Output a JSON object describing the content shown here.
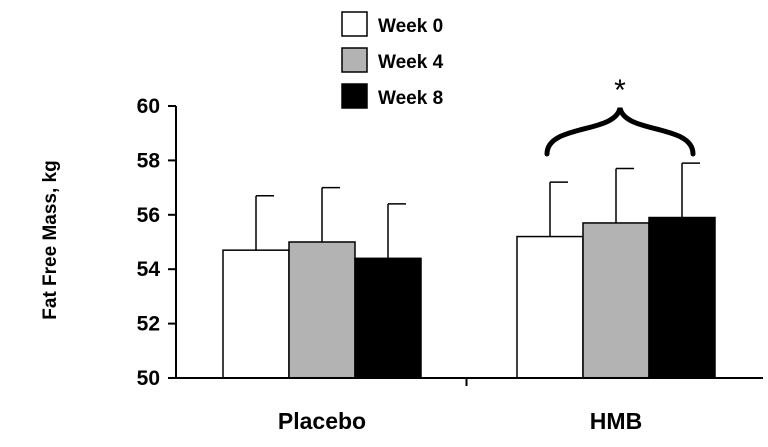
{
  "chart_data": {
    "type": "bar",
    "categories": [
      "Placebo",
      "HMB"
    ],
    "series": [
      {
        "name": "Week 0",
        "values": [
          54.7,
          55.2
        ],
        "errors": [
          2.0,
          2.0
        ],
        "color": "#ffffff"
      },
      {
        "name": "Week 4",
        "values": [
          55.0,
          55.7
        ],
        "errors": [
          2.0,
          2.0
        ],
        "color": "#b3b3b3"
      },
      {
        "name": "Week 8",
        "values": [
          54.4,
          55.9
        ],
        "errors": [
          2.0,
          2.0
        ],
        "color": "#000000"
      }
    ],
    "ylabel": "Fat Free Mass, kg",
    "ylim": [
      50,
      60
    ],
    "yticks": [
      50,
      52,
      54,
      56,
      58,
      60
    ],
    "legend": "top-center",
    "grid": false,
    "annotation": {
      "text": "*",
      "category": "HMB"
    }
  }
}
